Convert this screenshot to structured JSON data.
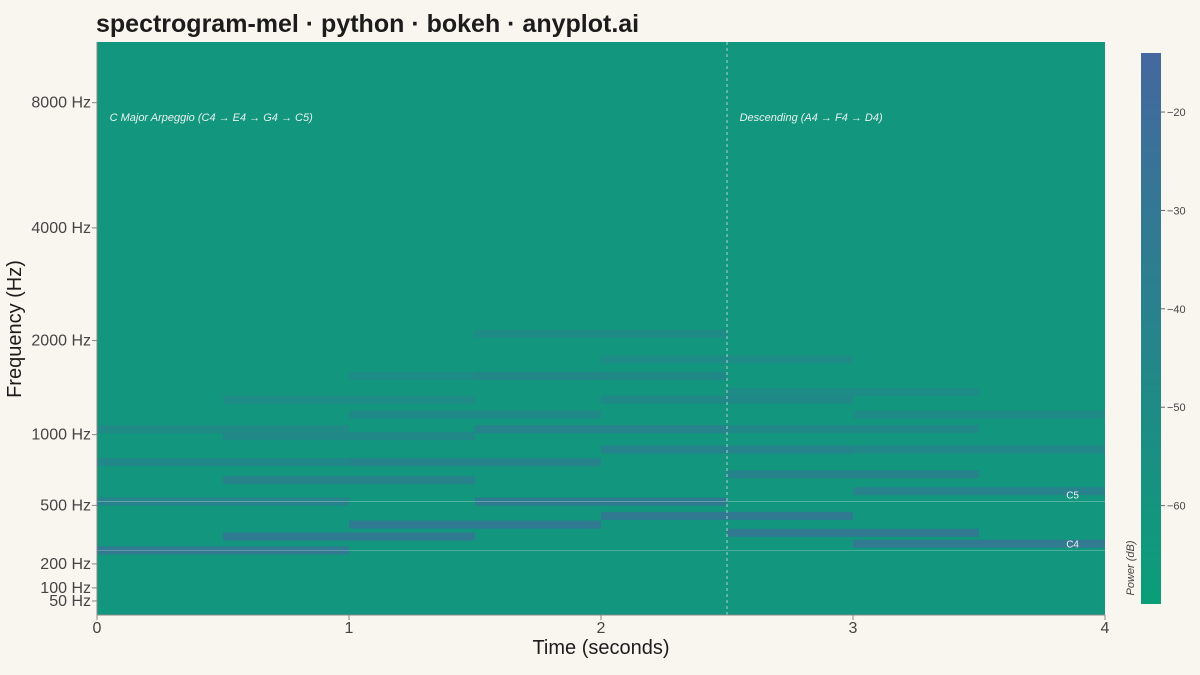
{
  "chart_data": {
    "type": "heatmap",
    "title": "spectrogram-mel · python · bokeh · anyplot.ai",
    "xlabel": "Time (seconds)",
    "ylabel": "Frequency (Hz)",
    "colorbar_label": "Power (dB)",
    "xlim": [
      0,
      4
    ],
    "x_ticks": [
      0,
      1,
      2,
      3,
      4
    ],
    "y_scale": "mel",
    "ylim": [
      0,
      11025
    ],
    "y_ticks": [
      {
        "value": 50,
        "label": "50 Hz"
      },
      {
        "value": 100,
        "label": "100 Hz"
      },
      {
        "value": 200,
        "label": "200 Hz"
      },
      {
        "value": 500,
        "label": "500 Hz"
      },
      {
        "value": 1000,
        "label": "1000 Hz"
      },
      {
        "value": 2000,
        "label": "2000 Hz"
      },
      {
        "value": 4000,
        "label": "4000 Hz"
      },
      {
        "value": 8000,
        "label": "8000 Hz"
      }
    ],
    "colorbar_range": [
      -70,
      -14
    ],
    "colorbar_ticks": [
      -20,
      -30,
      -40,
      -50,
      -60
    ],
    "background_db": -62,
    "segments": [
      {
        "t0": 0.0,
        "t1": 1.0,
        "freq": 262,
        "db": -28
      },
      {
        "t0": 0.0,
        "t1": 1.0,
        "freq": 523,
        "db": -38
      },
      {
        "t0": 0.0,
        "t1": 1.0,
        "freq": 785,
        "db": -44
      },
      {
        "t0": 0.0,
        "t1": 1.0,
        "freq": 1046,
        "db": -47
      },
      {
        "t0": 0.5,
        "t1": 1.5,
        "freq": 330,
        "db": -30
      },
      {
        "t0": 0.5,
        "t1": 1.5,
        "freq": 659,
        "db": -40
      },
      {
        "t0": 0.5,
        "t1": 1.5,
        "freq": 988,
        "db": -45
      },
      {
        "t0": 0.5,
        "t1": 1.5,
        "freq": 1318,
        "db": -48
      },
      {
        "t0": 1.0,
        "t1": 2.0,
        "freq": 392,
        "db": -30
      },
      {
        "t0": 1.0,
        "t1": 2.0,
        "freq": 784,
        "db": -40
      },
      {
        "t0": 1.0,
        "t1": 2.0,
        "freq": 1176,
        "db": -45
      },
      {
        "t0": 1.0,
        "t1": 2.0,
        "freq": 1568,
        "db": -48
      },
      {
        "t0": 1.5,
        "t1": 2.5,
        "freq": 523,
        "db": -30
      },
      {
        "t0": 1.5,
        "t1": 2.5,
        "freq": 1046,
        "db": -40
      },
      {
        "t0": 1.5,
        "t1": 2.5,
        "freq": 1569,
        "db": -45
      },
      {
        "t0": 1.5,
        "t1": 2.5,
        "freq": 2092,
        "db": -48
      },
      {
        "t0": 2.0,
        "t1": 3.0,
        "freq": 440,
        "db": -30
      },
      {
        "t0": 2.0,
        "t1": 3.0,
        "freq": 880,
        "db": -40
      },
      {
        "t0": 2.0,
        "t1": 3.0,
        "freq": 1320,
        "db": -45
      },
      {
        "t0": 2.0,
        "t1": 3.0,
        "freq": 1760,
        "db": -48
      },
      {
        "t0": 2.5,
        "t1": 3.5,
        "freq": 349,
        "db": -30
      },
      {
        "t0": 2.5,
        "t1": 3.5,
        "freq": 698,
        "db": -40
      },
      {
        "t0": 2.5,
        "t1": 3.5,
        "freq": 1047,
        "db": -45
      },
      {
        "t0": 2.5,
        "t1": 3.5,
        "freq": 1396,
        "db": -48
      },
      {
        "t0": 3.0,
        "t1": 4.0,
        "freq": 294,
        "db": -28
      },
      {
        "t0": 3.0,
        "t1": 4.0,
        "freq": 587,
        "db": -38
      },
      {
        "t0": 3.0,
        "t1": 4.0,
        "freq": 881,
        "db": -44
      },
      {
        "t0": 3.0,
        "t1": 4.0,
        "freq": 1174,
        "db": -47
      }
    ],
    "vlines": [
      0,
      2.5
    ],
    "hlines": [
      {
        "freq": 262,
        "label": "C4"
      },
      {
        "freq": 523,
        "label": "C5"
      }
    ],
    "annotations": [
      {
        "t": 0.05,
        "freq": 7400,
        "text": "C Major Arpeggio (C4 → E4 → G4 → C5)"
      },
      {
        "t": 2.55,
        "freq": 7400,
        "text": "Descending (A4 → F4 → D4)"
      }
    ],
    "colors": {
      "low": "#0a9e78",
      "high": "#44689f",
      "background": "#f9f6ef"
    }
  }
}
